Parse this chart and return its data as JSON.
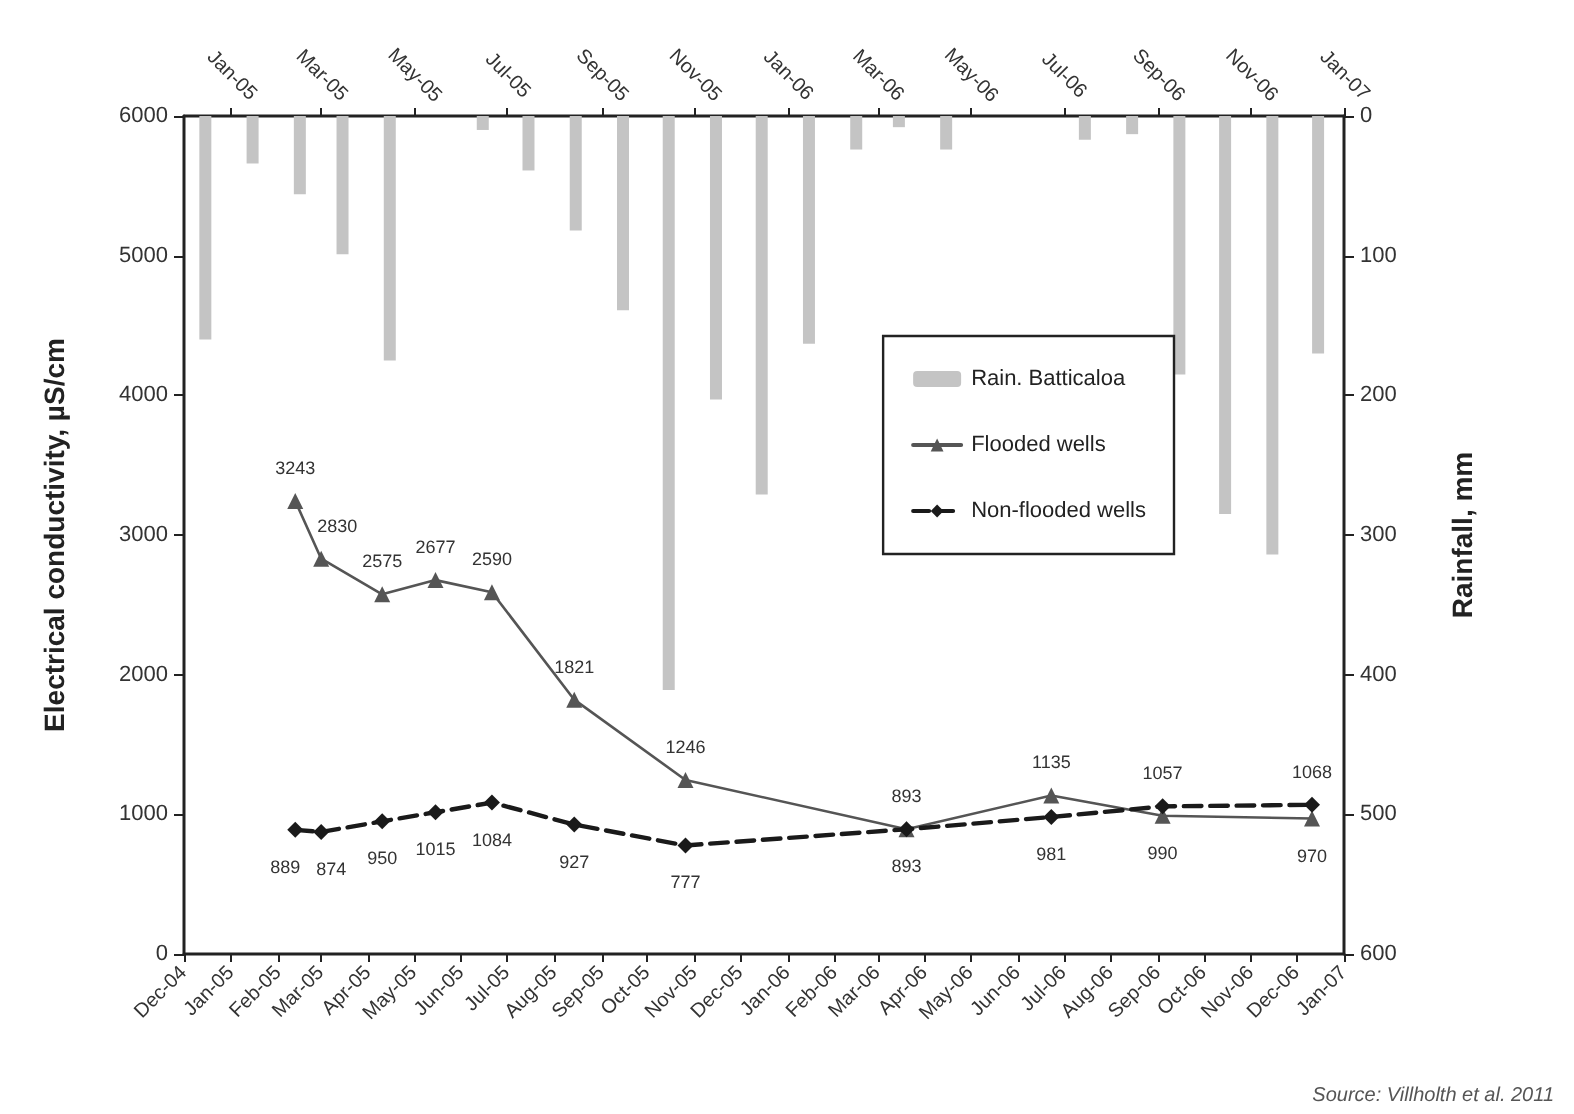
{
  "chart_data": {
    "type": "line",
    "ylabel": "Electrical conductivity, µS/cm",
    "y2label": "Rainfall, mm",
    "annotations": [
      "Source: Villholth et al. 2011"
    ],
    "x": [
      "2005-02-12",
      "2005-03-01",
      "2005-04-10",
      "2005-05-15",
      "2005-06-21",
      "2005-08-14",
      "2005-10-26",
      "2006-03-20",
      "2006-06-23",
      "2006-09-04",
      "2006-12-11"
    ],
    "series": [
      {
        "name": "Rain. Batticaloa",
        "type": "bar",
        "axis": "y2",
        "color": "#c4c4c4",
        "x": [
          "2004-12-15",
          "2005-01-15",
          "2005-02-15",
          "2005-03-15",
          "2005-04-15",
          "2005-05-15",
          "2005-06-15",
          "2005-07-15",
          "2005-08-15",
          "2005-09-15",
          "2005-10-15",
          "2005-11-15",
          "2005-12-15",
          "2006-01-15",
          "2006-02-15",
          "2006-03-15",
          "2006-04-15",
          "2006-05-15",
          "2006-06-15",
          "2006-07-15",
          "2006-08-15",
          "2006-09-15",
          "2006-10-15",
          "2006-11-15",
          "2006-12-15"
        ],
        "values": [
          160,
          34,
          56,
          99,
          175,
          0,
          10,
          39,
          82,
          139,
          411,
          203,
          271,
          163,
          24,
          8,
          24,
          0,
          0,
          17,
          13,
          185,
          285,
          314,
          170
        ]
      },
      {
        "name": "Flooded wells",
        "color": "#555555",
        "marker": "triangle",
        "line_style": "solid",
        "values": [
          3243,
          2830,
          2575,
          2677,
          2590,
          1821,
          1246,
          893,
          1135,
          990,
          970
        ],
        "value_labels": [
          "3243",
          "2830",
          "2575",
          "2677",
          "2590",
          "1821",
          "1246",
          "893",
          "1135",
          "990",
          "970"
        ]
      },
      {
        "name": "Non-flooded wells",
        "color": "#1a1a1a",
        "marker": "diamond",
        "line_style": "dashed",
        "values": [
          889,
          874,
          950,
          1015,
          1084,
          927,
          777,
          893,
          981,
          1057,
          1068
        ],
        "value_labels": [
          "889",
          "874",
          "950",
          "1015",
          "1084",
          "927",
          "777",
          "893",
          "981",
          "1057",
          "1068"
        ]
      }
    ],
    "xlim": [
      "2004-12-01",
      "2007-01-01"
    ],
    "xticks": [
      {
        "value": "2004-12-01",
        "label": "Dec-04"
      },
      {
        "value": "2005-01-01",
        "label": "Jan-05"
      },
      {
        "value": "2005-02-01",
        "label": "Feb-05"
      },
      {
        "value": "2005-03-01",
        "label": "Mar-05"
      },
      {
        "value": "2005-04-01",
        "label": "Apr-05"
      },
      {
        "value": "2005-05-01",
        "label": "May-05"
      },
      {
        "value": "2005-06-01",
        "label": "Jun-05"
      },
      {
        "value": "2005-07-01",
        "label": "Jul-05"
      },
      {
        "value": "2005-08-01",
        "label": "Aug-05"
      },
      {
        "value": "2005-09-01",
        "label": "Sep-05"
      },
      {
        "value": "2005-10-01",
        "label": "Oct-05"
      },
      {
        "value": "2005-11-01",
        "label": "Nov-05"
      },
      {
        "value": "2005-12-01",
        "label": "Dec-05"
      },
      {
        "value": "2006-01-01",
        "label": "Jan-06"
      },
      {
        "value": "2006-02-01",
        "label": "Feb-06"
      },
      {
        "value": "2006-03-01",
        "label": "Mar-06"
      },
      {
        "value": "2006-04-01",
        "label": "Apr-06"
      },
      {
        "value": "2006-05-01",
        "label": "May-06"
      },
      {
        "value": "2006-06-01",
        "label": "Jun-06"
      },
      {
        "value": "2006-07-01",
        "label": "Jul-06"
      },
      {
        "value": "2006-08-01",
        "label": "Aug-06"
      },
      {
        "value": "2006-09-01",
        "label": "Sep-06"
      },
      {
        "value": "2006-10-01",
        "label": "Oct-06"
      },
      {
        "value": "2006-11-01",
        "label": "Nov-06"
      },
      {
        "value": "2006-12-01",
        "label": "Dec-06"
      },
      {
        "value": "2007-01-01",
        "label": "Jan-07"
      }
    ],
    "x2lim": [
      "2004-12-01",
      "2007-01-01"
    ],
    "x2ticks": [
      {
        "value": "2005-01-01",
        "label": "Jan-05"
      },
      {
        "value": "2005-03-01",
        "label": "Mar-05"
      },
      {
        "value": "2005-05-01",
        "label": "May-05"
      },
      {
        "value": "2005-07-01",
        "label": "Jul-05"
      },
      {
        "value": "2005-09-01",
        "label": "Sep-05"
      },
      {
        "value": "2005-11-01",
        "label": "Nov-05"
      },
      {
        "value": "2006-01-01",
        "label": "Jan-06"
      },
      {
        "value": "2006-03-01",
        "label": "Mar-06"
      },
      {
        "value": "2006-05-01",
        "label": "May-06"
      },
      {
        "value": "2006-07-01",
        "label": "Jul-06"
      },
      {
        "value": "2006-09-01",
        "label": "Sep-06"
      },
      {
        "value": "2006-11-01",
        "label": "Nov-06"
      },
      {
        "value": "2007-01-01",
        "label": "Jan-07"
      }
    ],
    "ylim": [
      0,
      6000
    ],
    "yticks": [
      0,
      1000,
      2000,
      3000,
      4000,
      5000,
      6000
    ],
    "y2lim": [
      600,
      0
    ],
    "y2ticks": [
      0,
      100,
      200,
      300,
      400,
      500,
      600
    ],
    "grid": false,
    "legend": "right"
  }
}
